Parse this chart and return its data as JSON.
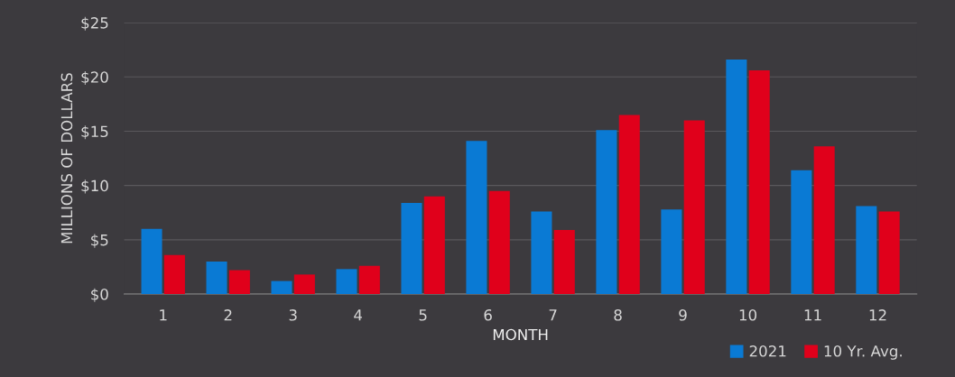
{
  "chart_data": {
    "type": "bar",
    "xlabel": "MONTH",
    "ylabel": "MILLIONS OF DOLLARS",
    "categories": [
      "1",
      "2",
      "3",
      "4",
      "5",
      "6",
      "7",
      "8",
      "9",
      "10",
      "11",
      "12"
    ],
    "series": [
      {
        "name": "2021",
        "color": "#0a7ad4",
        "values": [
          6.0,
          3.0,
          1.2,
          2.3,
          8.4,
          14.1,
          7.6,
          15.1,
          7.8,
          21.6,
          11.4,
          8.1
        ]
      },
      {
        "name": "10 Yr. Avg.",
        "color": "#e0001b",
        "values": [
          3.6,
          2.2,
          1.8,
          2.6,
          9.0,
          9.5,
          5.9,
          16.5,
          16.0,
          20.6,
          13.6,
          7.6
        ]
      }
    ],
    "ylim": [
      0,
      25
    ],
    "yticks": [
      {
        "value": 0,
        "label": "$0"
      },
      {
        "value": 5,
        "label": "$5"
      },
      {
        "value": 10,
        "label": "$10"
      },
      {
        "value": 15,
        "label": "$15"
      },
      {
        "value": 20,
        "label": "$20"
      },
      {
        "value": 25,
        "label": "$25"
      }
    ],
    "grid": "y",
    "legend": "bottom right"
  }
}
